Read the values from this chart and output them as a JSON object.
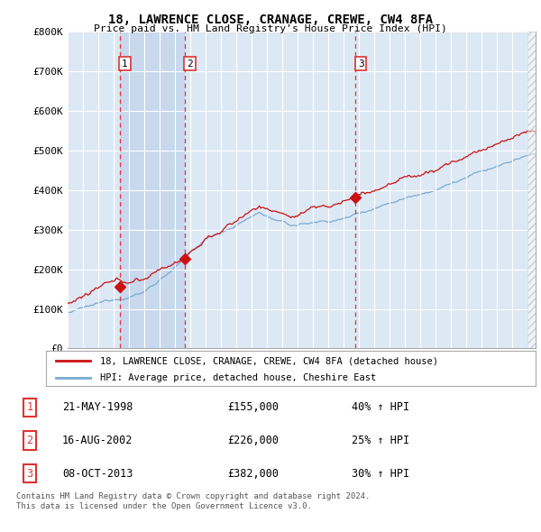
{
  "title": "18, LAWRENCE CLOSE, CRANAGE, CREWE, CW4 8FA",
  "subtitle": "Price paid vs. HM Land Registry's House Price Index (HPI)",
  "y_min": 0,
  "y_max": 800000,
  "y_ticks": [
    0,
    100000,
    200000,
    300000,
    400000,
    500000,
    600000,
    700000,
    800000
  ],
  "y_tick_labels": [
    "£0",
    "£100K",
    "£200K",
    "£300K",
    "£400K",
    "£500K",
    "£600K",
    "£700K",
    "£800K"
  ],
  "background_color": "#ffffff",
  "plot_bg_color": "#dde8f5",
  "shaded_bg_color": "#c8d8ed",
  "grid_color": "#ffffff",
  "sale_points": [
    {
      "year": 1998.38,
      "price": 155000,
      "label": "1"
    },
    {
      "year": 2002.62,
      "price": 226000,
      "label": "2"
    },
    {
      "year": 2013.77,
      "price": 382000,
      "label": "3"
    }
  ],
  "vline_color": "#dd3333",
  "red_line_color": "#cc1111",
  "blue_line_color": "#7aaad0",
  "legend_entries": [
    "18, LAWRENCE CLOSE, CRANAGE, CREWE, CW4 8FA (detached house)",
    "HPI: Average price, detached house, Cheshire East"
  ],
  "table_rows": [
    {
      "num": "1",
      "date": "21-MAY-1998",
      "price": "£155,000",
      "change": "40% ↑ HPI"
    },
    {
      "num": "2",
      "date": "16-AUG-2002",
      "price": "£226,000",
      "change": "25% ↑ HPI"
    },
    {
      "num": "3",
      "date": "08-OCT-2013",
      "price": "£382,000",
      "change": "30% ↑ HPI"
    }
  ],
  "footnote": "Contains HM Land Registry data © Crown copyright and database right 2024.\nThis data is licensed under the Open Government Licence v3.0."
}
